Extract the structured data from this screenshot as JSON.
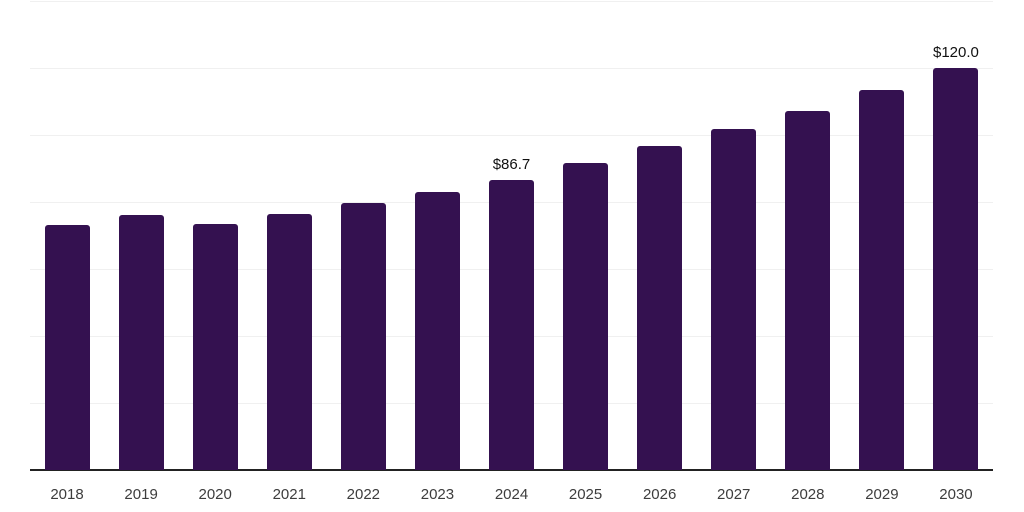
{
  "chart_data": {
    "type": "bar",
    "title": "",
    "xlabel": "",
    "ylabel": "",
    "categories": [
      "2018",
      "2019",
      "2020",
      "2021",
      "2022",
      "2023",
      "2024",
      "2025",
      "2026",
      "2027",
      "2028",
      "2029",
      "2030"
    ],
    "values": [
      73.0,
      76.0,
      73.3,
      76.3,
      79.6,
      83.0,
      86.7,
      91.5,
      96.6,
      101.8,
      107.2,
      113.5,
      120.0
    ],
    "point_labels": [
      "",
      "",
      "",
      "",
      "",
      "",
      "$86.7",
      "",
      "",
      "",
      "",
      "",
      "$120.0"
    ],
    "ylim": [
      0,
      140
    ],
    "grid": true,
    "gridline_interval": 20,
    "y_axis_labels_visible": false,
    "legend": "none",
    "colors": {
      "bar": "#341150",
      "gridline": "#f0f0f0",
      "axis_line": "#222222",
      "tick_label": "#3d3d3d",
      "value_label": "#111111",
      "background": "#ffffff"
    }
  }
}
